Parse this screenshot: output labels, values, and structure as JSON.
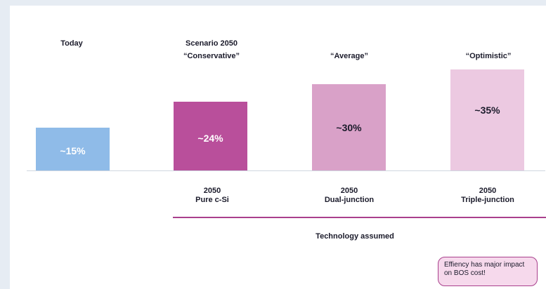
{
  "headers": {
    "today": "Today",
    "scenario": "Scenario 2050",
    "conservative": "“Conservative”",
    "average": "“Average”",
    "optimistic": "“Optimistic”"
  },
  "technology": {
    "caption": "Technology assumed",
    "items": [
      {
        "year": "2050",
        "name": "Pure c-Si"
      },
      {
        "year": "2050",
        "name": "Dual-junction"
      },
      {
        "year": "2050",
        "name": "Triple-junction"
      }
    ]
  },
  "note": "Effiency has major impact on BOS cost!",
  "chart_data": {
    "type": "bar",
    "categories": [
      "Today",
      "Conservative",
      "Average",
      "Optimistic"
    ],
    "values": [
      15,
      24,
      30,
      35
    ],
    "data_labels": [
      "~15%",
      "~24%",
      "~30%",
      "~35%"
    ],
    "colors": [
      "#8fbbe8",
      "#b94f9b",
      "#d9a1c8",
      "#ecc9e1"
    ],
    "label_colors": [
      "#ffffff",
      "#ffffff",
      "#1b1b2b",
      "#1b1b2b"
    ],
    "ylim": [
      0,
      40
    ],
    "grid": false
  }
}
